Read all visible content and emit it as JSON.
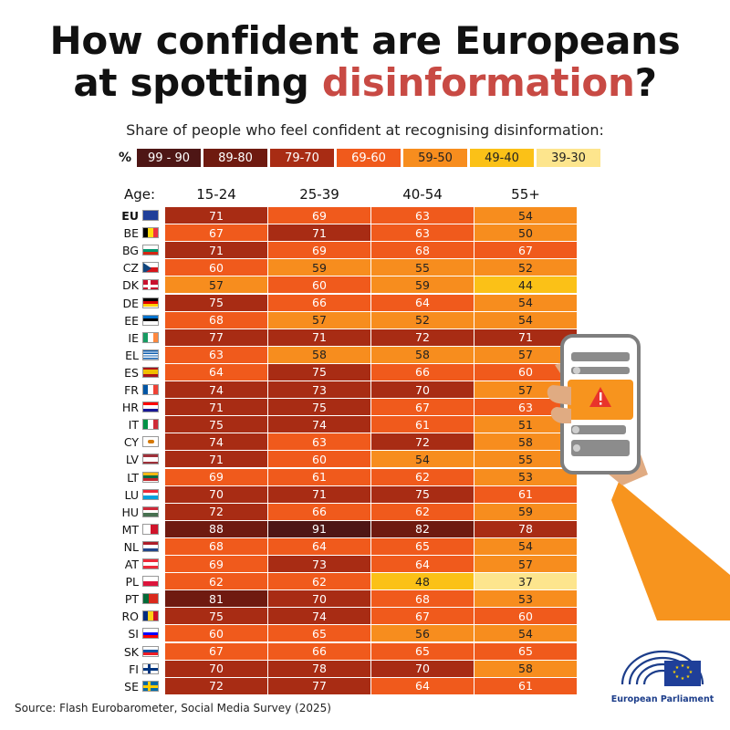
{
  "title": {
    "line1": "How confident are Europeans",
    "line2_prefix": "at spotting ",
    "line2_accent": "disinformation",
    "line2_suffix": "?"
  },
  "subtitle": "Share of people who feel confident at recognising disinformation:",
  "legend": {
    "symbol": "%",
    "bins": [
      {
        "label": "99 - 90",
        "color": "#4e1615"
      },
      {
        "label": "89-80",
        "color": "#6f1a10"
      },
      {
        "label": "79-70",
        "color": "#a82c14"
      },
      {
        "label": "69-60",
        "color": "#f05a1c"
      },
      {
        "label": "59-50",
        "color": "#f78d1e"
      },
      {
        "label": "49-40",
        "color": "#fbc117"
      },
      {
        "label": "39-30",
        "color": "#fde58d"
      }
    ]
  },
  "source": "Source: Flash Eurobarometer, Social Media Survey (2025)",
  "logo_text": "European Parliament",
  "chart_data": {
    "type": "heatmap",
    "row_header": "Age:",
    "columns": [
      "15-24",
      "25-39",
      "40-54",
      "55+"
    ],
    "rows": [
      {
        "code": "EU",
        "values": [
          71,
          69,
          63,
          54
        ]
      },
      {
        "code": "BE",
        "values": [
          67,
          71,
          63,
          50
        ]
      },
      {
        "code": "BG",
        "values": [
          71,
          69,
          68,
          67
        ]
      },
      {
        "code": "CZ",
        "values": [
          60,
          59,
          55,
          52
        ]
      },
      {
        "code": "DK",
        "values": [
          57,
          60,
          59,
          44
        ]
      },
      {
        "code": "DE",
        "values": [
          75,
          66,
          64,
          54
        ]
      },
      {
        "code": "EE",
        "values": [
          68,
          57,
          52,
          54
        ]
      },
      {
        "code": "IE",
        "values": [
          77,
          71,
          72,
          71
        ]
      },
      {
        "code": "EL",
        "values": [
          63,
          58,
          58,
          57
        ]
      },
      {
        "code": "ES",
        "values": [
          64,
          75,
          66,
          60
        ]
      },
      {
        "code": "FR",
        "values": [
          74,
          73,
          70,
          57
        ]
      },
      {
        "code": "HR",
        "values": [
          71,
          75,
          67,
          63
        ]
      },
      {
        "code": "IT",
        "values": [
          75,
          74,
          61,
          51
        ]
      },
      {
        "code": "CY",
        "values": [
          74,
          63,
          72,
          58
        ]
      },
      {
        "code": "LV",
        "values": [
          71,
          60,
          54,
          55
        ]
      },
      {
        "code": "LT",
        "values": [
          69,
          61,
          62,
          53
        ]
      },
      {
        "code": "LU",
        "values": [
          70,
          71,
          75,
          61
        ]
      },
      {
        "code": "HU",
        "values": [
          72,
          66,
          62,
          59
        ]
      },
      {
        "code": "MT",
        "values": [
          88,
          91,
          82,
          78
        ]
      },
      {
        "code": "NL",
        "values": [
          68,
          64,
          65,
          54
        ]
      },
      {
        "code": "AT",
        "values": [
          69,
          73,
          64,
          57
        ]
      },
      {
        "code": "PL",
        "values": [
          62,
          62,
          48,
          37
        ]
      },
      {
        "code": "PT",
        "values": [
          81,
          70,
          68,
          53
        ]
      },
      {
        "code": "RO",
        "values": [
          75,
          74,
          67,
          60
        ]
      },
      {
        "code": "SI",
        "values": [
          60,
          65,
          56,
          54
        ]
      },
      {
        "code": "SK",
        "values": [
          67,
          66,
          65,
          65
        ]
      },
      {
        "code": "FI",
        "values": [
          70,
          78,
          70,
          58
        ]
      },
      {
        "code": "SE",
        "values": [
          72,
          77,
          64,
          61
        ]
      }
    ]
  }
}
